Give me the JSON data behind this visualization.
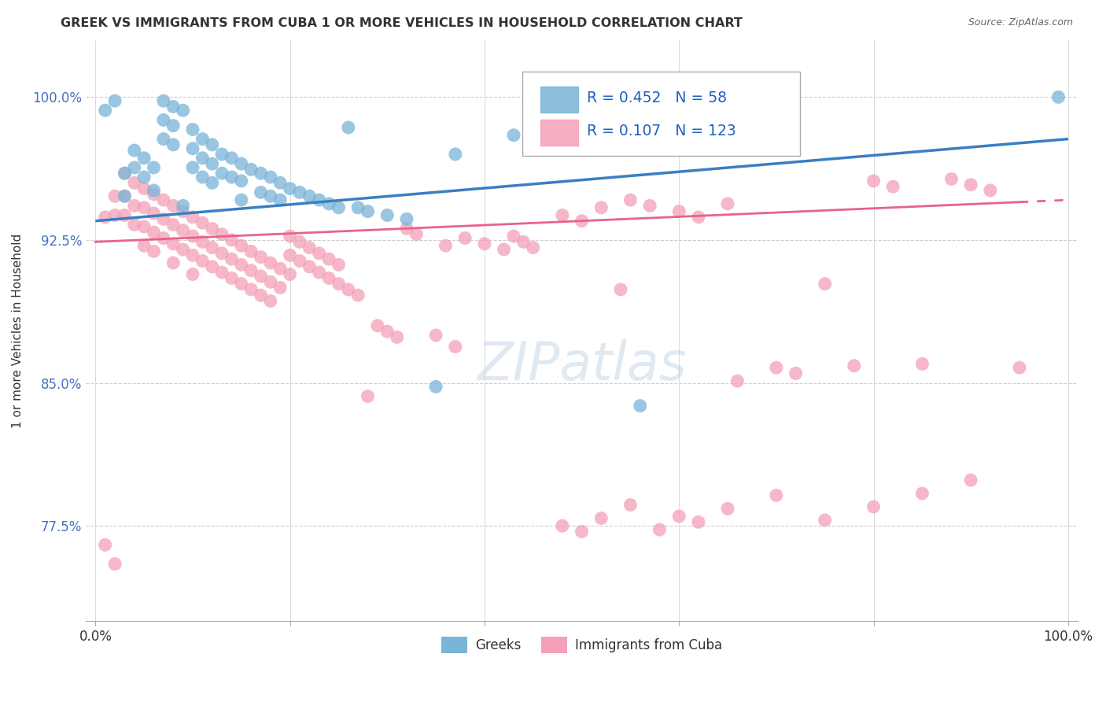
{
  "title": "GREEK VS IMMIGRANTS FROM CUBA 1 OR MORE VEHICLES IN HOUSEHOLD CORRELATION CHART",
  "source": "Source: ZipAtlas.com",
  "ylabel": "1 or more Vehicles in Household",
  "xlim": [
    -0.01,
    1.01
  ],
  "ylim": [
    0.725,
    1.03
  ],
  "yticks": [
    0.775,
    0.85,
    0.925,
    1.0
  ],
  "ytick_labels": [
    "77.5%",
    "85.0%",
    "92.5%",
    "100.0%"
  ],
  "xticks": [
    0.0,
    0.2,
    0.4,
    0.6,
    0.8,
    1.0
  ],
  "xtick_labels": [
    "0.0%",
    "",
    "",
    "",
    "",
    "100.0%"
  ],
  "blue_R": 0.452,
  "blue_N": 58,
  "pink_R": 0.107,
  "pink_N": 123,
  "blue_color": "#7ab4d8",
  "pink_color": "#f4a0b8",
  "blue_line_color": "#3a7fc1",
  "pink_line_color": "#e8638a",
  "legend_label_blue": "Greeks",
  "legend_label_pink": "Immigrants from Cuba",
  "blue_line_x0": 0.0,
  "blue_line_y0": 0.935,
  "blue_line_x1": 1.0,
  "blue_line_y1": 0.978,
  "pink_line_x0": 0.0,
  "pink_line_y0": 0.924,
  "pink_line_x1": 1.0,
  "pink_line_y1": 0.946
}
